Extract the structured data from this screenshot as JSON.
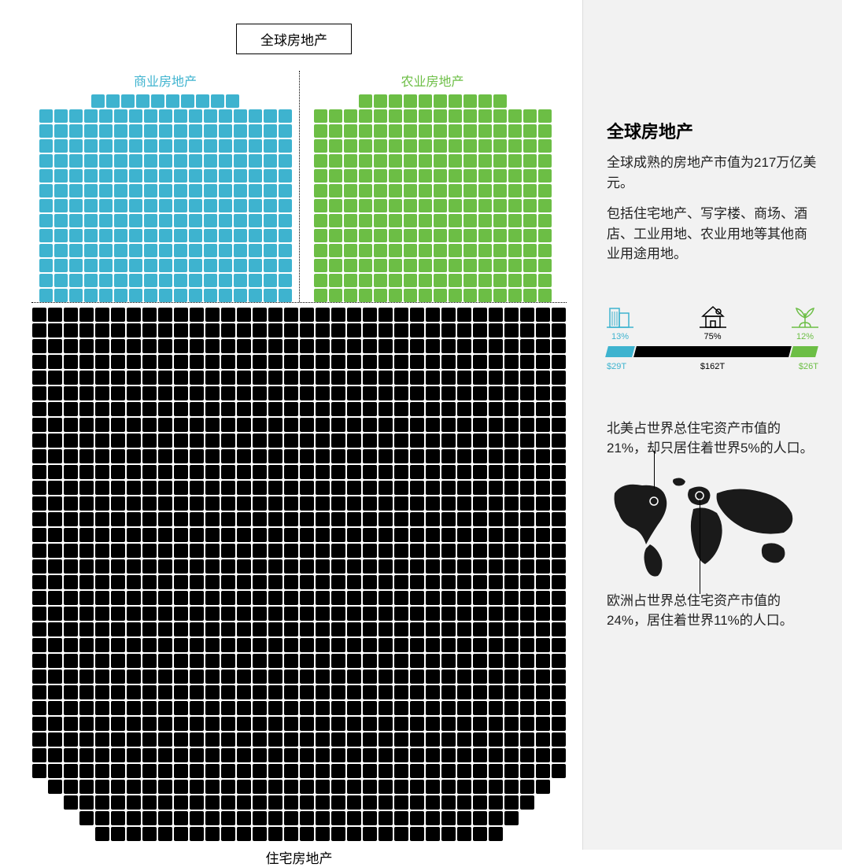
{
  "main_title": "全球房地产",
  "categories": {
    "commercial": {
      "label": "商业房地产",
      "color": "#3eb3cf",
      "rows": [
        10,
        17,
        17,
        17,
        17,
        17,
        17,
        17,
        17,
        17,
        17,
        17,
        17,
        17
      ]
    },
    "agricultural": {
      "label": "农业房地产",
      "color": "#6cbe45",
      "rows": [
        10,
        16,
        16,
        16,
        16,
        16,
        16,
        16,
        16,
        16,
        16,
        16,
        16,
        16
      ]
    },
    "residential": {
      "label": "住宅房地产",
      "color": "#000000",
      "rows": [
        34,
        34,
        34,
        34,
        34,
        34,
        34,
        34,
        34,
        34,
        34,
        34,
        34,
        34,
        34,
        34,
        34,
        34,
        34,
        34,
        34,
        34,
        34,
        34,
        34,
        34,
        34,
        34,
        34,
        34,
        32,
        30,
        28,
        26
      ]
    }
  },
  "cell_size": 17,
  "cell_gap": 2,
  "cell_radius": 2,
  "sidebar": {
    "title": "全球房地产",
    "para1": "全球成熟的房地产市值为217万亿美元。",
    "para2": "包括住宅地产、写字楼、商场、酒店、工业用地、农业用地等其他商业用途用地。",
    "stats": [
      {
        "key": "commercial",
        "percent": "13%",
        "amount": "$29T",
        "color": "#3eb3cf"
      },
      {
        "key": "residential",
        "percent": "75%",
        "amount": "$162T",
        "color": "#000000"
      },
      {
        "key": "agricultural",
        "percent": "12%",
        "amount": "$26T",
        "color": "#6cbe45"
      }
    ],
    "bar_segments": [
      {
        "width_pct": 13,
        "color": "#3eb3cf"
      },
      {
        "width_pct": 75,
        "color": "#000000"
      },
      {
        "width_pct": 12,
        "color": "#6cbe45"
      }
    ],
    "region_na": "北美占世界总住宅资产市值的21%，却只居住着世界5%的人口。",
    "region_eu": "欧洲占世界总住宅资产市值的24%，居住着世界11%的人口。",
    "map_color": "#1a1a1a",
    "marker_color": "#ffffff"
  }
}
